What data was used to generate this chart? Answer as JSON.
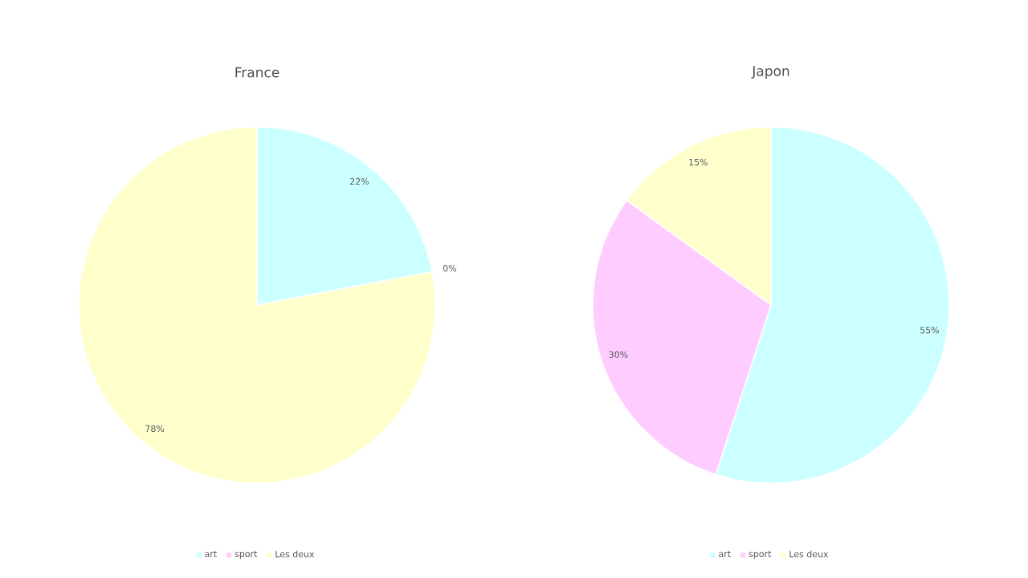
{
  "chart_data": [
    {
      "type": "pie",
      "title": "France",
      "categories": [
        "art",
        "sport",
        "Les deux"
      ],
      "values": [
        22,
        0,
        78
      ],
      "colors": [
        "#ccffff",
        "#ffccff",
        "#ffffcc"
      ],
      "value_labels": [
        "22%",
        "0%",
        "78%"
      ],
      "legend": "bottom"
    },
    {
      "type": "pie",
      "title": "Japon",
      "categories": [
        "art",
        "sport",
        "Les deux"
      ],
      "values": [
        55,
        30,
        15
      ],
      "colors": [
        "#ccffff",
        "#ffccff",
        "#ffffcc"
      ],
      "value_labels": [
        "55%",
        "30%",
        "15%"
      ],
      "legend": "bottom"
    }
  ]
}
